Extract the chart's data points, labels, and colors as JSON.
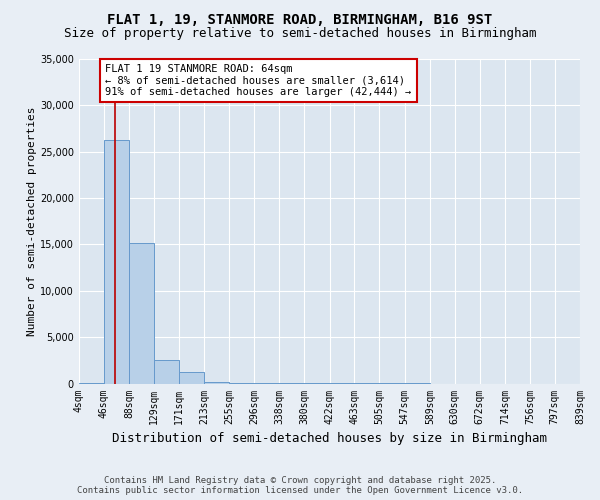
{
  "title_line1": "FLAT 1, 19, STANMORE ROAD, BIRMINGHAM, B16 9ST",
  "title_line2": "Size of property relative to semi-detached houses in Birmingham",
  "xlabel": "Distribution of semi-detached houses by size in Birmingham",
  "ylabel": "Number of semi-detached properties",
  "annotation_title": "FLAT 1 19 STANMORE ROAD: 64sqm",
  "annotation_line2": "← 8% of semi-detached houses are smaller (3,614)",
  "annotation_line3": "91% of semi-detached houses are larger (42,444) →",
  "footer_line1": "Contains HM Land Registry data © Crown copyright and database right 2025.",
  "footer_line2": "Contains public sector information licensed under the Open Government Licence v3.0.",
  "bin_edges": [
    4,
    46,
    88,
    129,
    171,
    213,
    255,
    296,
    338,
    380,
    422,
    463,
    505,
    547,
    589,
    630,
    672,
    714,
    756,
    797,
    839
  ],
  "bar_heights": [
    100,
    26300,
    15200,
    2500,
    1300,
    200,
    100,
    50,
    30,
    20,
    15,
    10,
    8,
    6,
    5,
    4,
    3,
    2,
    1,
    0
  ],
  "bar_color": "#b8d0e8",
  "bar_edge_color": "#6699cc",
  "property_size": 64,
  "property_line_color": "#bb0000",
  "ylim": [
    0,
    35000
  ],
  "yticks": [
    0,
    5000,
    10000,
    15000,
    20000,
    25000,
    30000,
    35000
  ],
  "background_color": "#e8eef5",
  "plot_background": "#dce6f0",
  "grid_color": "#ffffff",
  "title_fontsize": 10,
  "subtitle_fontsize": 9,
  "tick_fontsize": 7,
  "annotation_box_color": "#ffffff",
  "annotation_box_edge_color": "#cc0000"
}
